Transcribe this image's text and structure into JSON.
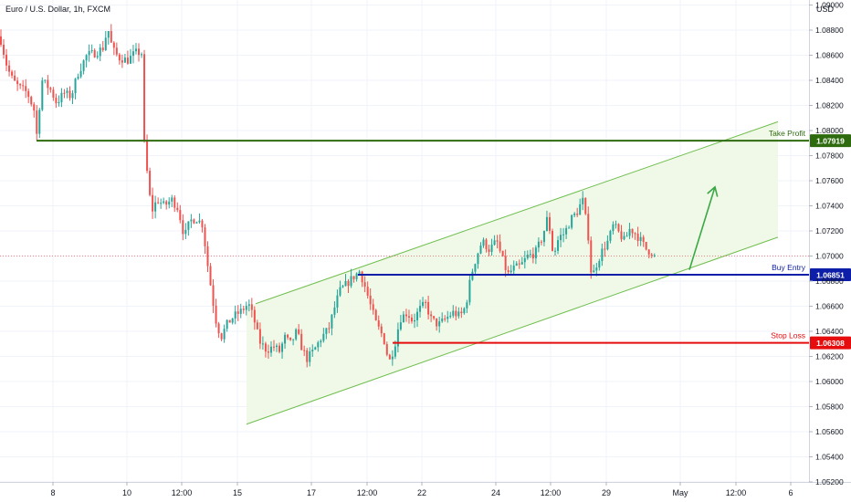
{
  "chart_data": {
    "type": "candlestick",
    "title": "Euro / U.S. Dollar, 1h, FXCM",
    "currency": "USD",
    "y_axis": {
      "range": [
        1.052,
        1.0904
      ],
      "ticks": [
        "1.09000",
        "1.08800",
        "1.08600",
        "1.08400",
        "1.08200",
        "1.08000",
        "1.07800",
        "1.07600",
        "1.07400",
        "1.07200",
        "1.07000",
        "1.06800",
        "1.06600",
        "1.06400",
        "1.06200",
        "1.06000",
        "1.05800",
        "1.05600",
        "1.05400",
        "1.05200"
      ],
      "side": "right"
    },
    "x_axis": {
      "range": [
        0,
        930
      ],
      "ticks": [
        {
          "label": "8",
          "t": 58
        },
        {
          "label": "10",
          "t": 139
        },
        {
          "label": "12:00",
          "t": 199
        },
        {
          "label": "15",
          "t": 260
        },
        {
          "label": "17",
          "t": 341
        },
        {
          "label": "12:00",
          "t": 402
        },
        {
          "label": "22",
          "t": 462
        },
        {
          "label": "24",
          "t": 543
        },
        {
          "label": "12:00",
          "t": 603
        },
        {
          "label": "29",
          "t": 664
        },
        {
          "label": "May",
          "t": 745
        },
        {
          "label": "12:00",
          "t": 806
        },
        {
          "label": "6",
          "t": 866
        }
      ]
    },
    "price_path": [
      [
        0,
        1.0875
      ],
      [
        8,
        1.085
      ],
      [
        14,
        1.084
      ],
      [
        20,
        1.0835
      ],
      [
        30,
        1.083
      ],
      [
        38,
        1.0815
      ],
      [
        40,
        1.0795
      ],
      [
        46,
        1.084
      ],
      [
        55,
        1.0833
      ],
      [
        62,
        1.0822
      ],
      [
        70,
        1.083
      ],
      [
        78,
        1.0827
      ],
      [
        85,
        1.0845
      ],
      [
        95,
        1.086
      ],
      [
        105,
        1.0862
      ],
      [
        113,
        1.0866
      ],
      [
        118,
        1.0882
      ],
      [
        123,
        1.0865
      ],
      [
        130,
        1.0858
      ],
      [
        140,
        1.0856
      ],
      [
        148,
        1.0862
      ],
      [
        155,
        1.0862
      ],
      [
        158,
        1.079
      ],
      [
        162,
        1.076
      ],
      [
        166,
        1.0735
      ],
      [
        172,
        1.0745
      ],
      [
        180,
        1.074
      ],
      [
        188,
        1.0745
      ],
      [
        195,
        1.0738
      ],
      [
        202,
        1.0715
      ],
      [
        208,
        1.0728
      ],
      [
        215,
        1.073
      ],
      [
        222,
        1.0725
      ],
      [
        226,
        1.07
      ],
      [
        230,
        1.068
      ],
      [
        236,
        1.065
      ],
      [
        242,
        1.0635
      ],
      [
        248,
        1.0645
      ],
      [
        256,
        1.0652
      ],
      [
        264,
        1.0656
      ],
      [
        272,
        1.0662
      ],
      [
        278,
        1.065
      ],
      [
        284,
        1.0632
      ],
      [
        292,
        1.0625
      ],
      [
        300,
        1.0628
      ],
      [
        306,
        1.0624
      ],
      [
        312,
        1.0635
      ],
      [
        318,
        1.063
      ],
      [
        325,
        1.064
      ],
      [
        330,
        1.0628
      ],
      [
        336,
        1.0618
      ],
      [
        344,
        1.0625
      ],
      [
        352,
        1.0635
      ],
      [
        360,
        1.0642
      ],
      [
        366,
        1.0658
      ],
      [
        372,
        1.0672
      ],
      [
        380,
        1.0678
      ],
      [
        388,
        1.0684
      ],
      [
        394,
        1.0688
      ],
      [
        400,
        1.0675
      ],
      [
        406,
        1.066
      ],
      [
        412,
        1.0646
      ],
      [
        420,
        1.0635
      ],
      [
        426,
        1.0615
      ],
      [
        432,
        1.0628
      ],
      [
        438,
        1.065
      ],
      [
        446,
        1.0655
      ],
      [
        452,
        1.0648
      ],
      [
        460,
        1.0658
      ],
      [
        466,
        1.0662
      ],
      [
        472,
        1.065
      ],
      [
        480,
        1.0645
      ],
      [
        488,
        1.065
      ],
      [
        496,
        1.0655
      ],
      [
        504,
        1.0652
      ],
      [
        510,
        1.066
      ],
      [
        516,
        1.0685
      ],
      [
        522,
        1.07
      ],
      [
        528,
        1.0712
      ],
      [
        536,
        1.0705
      ],
      [
        544,
        1.0712
      ],
      [
        550,
        1.0698
      ],
      [
        556,
        1.0685
      ],
      [
        562,
        1.069
      ],
      [
        570,
        1.0692
      ],
      [
        578,
        1.07
      ],
      [
        586,
        1.0702
      ],
      [
        594,
        1.0715
      ],
      [
        600,
        1.0732
      ],
      [
        606,
        1.07
      ],
      [
        612,
        1.0715
      ],
      [
        618,
        1.0718
      ],
      [
        626,
        1.073
      ],
      [
        632,
        1.0735
      ],
      [
        638,
        1.0745
      ],
      [
        644,
        1.0718
      ],
      [
        648,
        1.0682
      ],
      [
        654,
        1.0695
      ],
      [
        660,
        1.0705
      ],
      [
        666,
        1.0712
      ],
      [
        672,
        1.0725
      ],
      [
        678,
        1.0718
      ],
      [
        684,
        1.0712
      ],
      [
        690,
        1.0722
      ],
      [
        696,
        1.0718
      ],
      [
        702,
        1.0712
      ],
      [
        708,
        1.0705
      ],
      [
        714,
        1.0703
      ],
      [
        718,
        1.0698
      ]
    ],
    "levels": [
      {
        "label": "Take Profit",
        "price": 1.07919,
        "price_label": "1.07919",
        "color": "#2e6b0f",
        "t_start": 40
      },
      {
        "label": "Buy Entry",
        "price": 1.06851,
        "price_label": "1.06851",
        "color": "#0d1ea8",
        "t_start": 392
      },
      {
        "label": "Stop Loss",
        "price": 1.06308,
        "price_label": "1.06308",
        "color": "#e50d0d",
        "t_start": 430
      }
    ],
    "current_price": 1.07,
    "channel": {
      "upper": [
        [
          280,
          1.0662
        ],
        [
          852,
          1.0807
        ]
      ],
      "lower": [
        [
          270,
          1.0566
        ],
        [
          852,
          1.0715
        ]
      ],
      "fill": "#eef7e6",
      "stroke": "#6fbf4e"
    },
    "projection_arrow": {
      "from": [
        755,
        1.0689
      ],
      "to": [
        783,
        1.0755
      ],
      "color": "#3aa845"
    },
    "colors": {
      "up": "#26a69a",
      "down": "#ef5350",
      "grid": "#f0f3fa",
      "axis_text": "#131722"
    }
  }
}
